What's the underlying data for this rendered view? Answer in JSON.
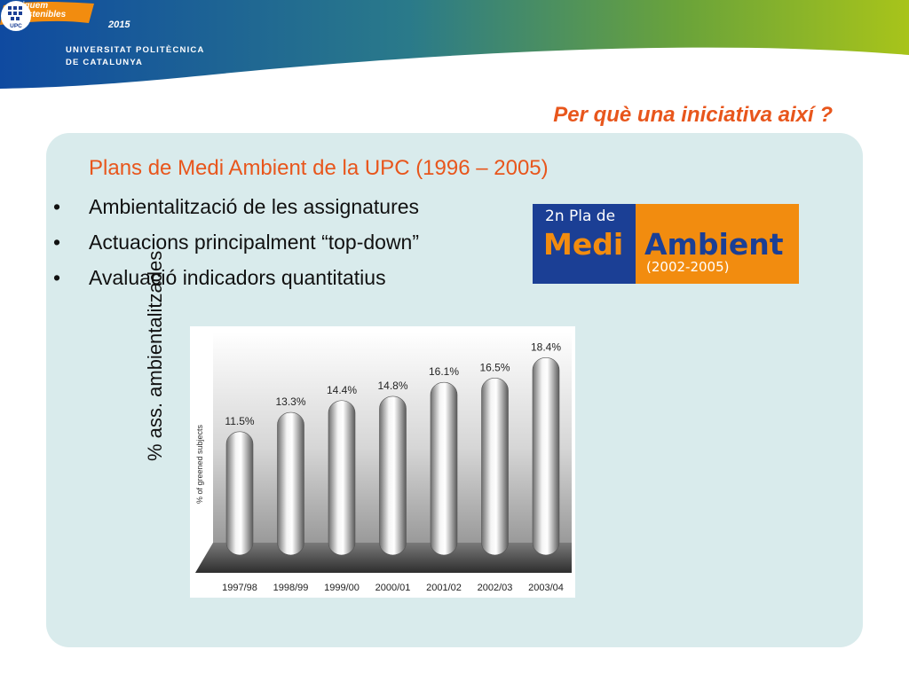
{
  "header": {
    "badge_line1": "Siguem",
    "badge_line2": "Sostenibles",
    "badge_year": "2015",
    "university_line1": "UNIVERSITAT POLITÈCNICA",
    "university_line2": "DE CATALUNYA",
    "logo_letters": "UPC"
  },
  "slide": {
    "title": "Per què una iniciativa així ?",
    "subtitle": "Plans de Medi Ambient de la UPC (1996 – 2005)",
    "bullet_symbol": "•",
    "bullets": [
      "Ambientalització de les assignatures",
      "Actuacions principalment “top-down”",
      "Avaluació indicadors quantitatius"
    ]
  },
  "pla_logo": {
    "line1": "2n Pla de",
    "word1": "Medi",
    "word2": "Ambient",
    "years": "(2002-2005)"
  },
  "outer_ylabel": "% ass. ambientalitzades",
  "colors": {
    "accent_orange": "#e8561c",
    "panel_bg": "#d9ebec",
    "pla_blue": "#1b3f95",
    "pla_orange": "#f28c0f"
  },
  "chart_data": {
    "type": "bar",
    "categories": [
      "1997/98",
      "1998/99",
      "1999/00",
      "2000/01",
      "2001/02",
      "2002/03",
      "2003/04"
    ],
    "values": [
      11.5,
      13.3,
      14.4,
      14.8,
      16.1,
      16.5,
      18.4
    ],
    "value_labels": [
      "11.5%",
      "13.3%",
      "14.4%",
      "14.8%",
      "16.1%",
      "16.5%",
      "18.4%"
    ],
    "ylabel": "% of greened subjects",
    "ylim": [
      0,
      20
    ]
  }
}
